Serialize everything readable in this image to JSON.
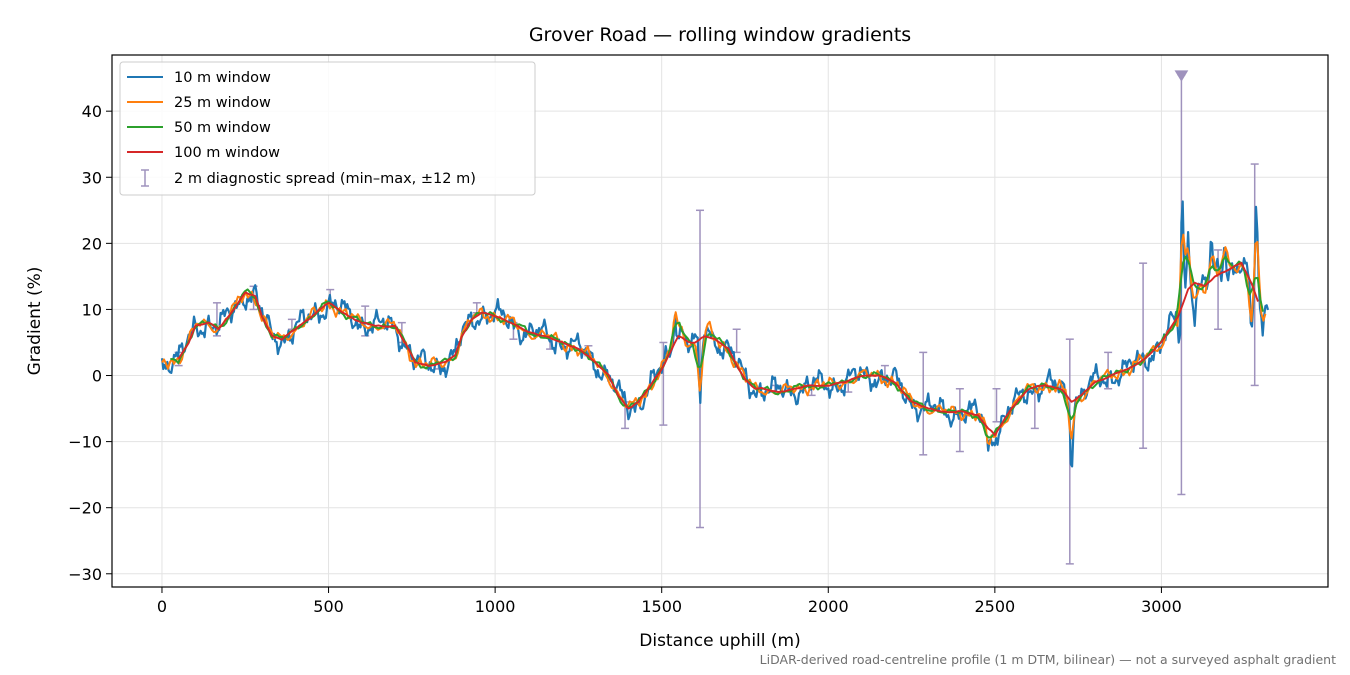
{
  "chart_data": {
    "type": "line",
    "title": "Grover Road — rolling window gradients",
    "xlabel": "Distance uphill (m)",
    "ylabel": "Gradient (%)",
    "xlim": [
      -150,
      3500
    ],
    "ylim": [
      -32,
      48.5
    ],
    "xticks": [
      0,
      500,
      1000,
      1500,
      2000,
      2500,
      3000
    ],
    "yticks": [
      -30,
      -20,
      -10,
      0,
      10,
      20,
      30,
      40
    ],
    "grid": true,
    "legend_position": "top-left",
    "footnote": "LiDAR-derived road-centreline profile (1 m DTM, bilinear) — not a surveyed asphalt gradient",
    "colors": {
      "w10": "#1f77b4",
      "w25": "#ff7f0e",
      "w50": "#2ca02c",
      "w100": "#d62728",
      "spread": "#9f92bd"
    },
    "base_profile": {
      "x": [
        0,
        50,
        80,
        100,
        140,
        170,
        200,
        250,
        280,
        300,
        330,
        360,
        400,
        450,
        500,
        530,
        560,
        600,
        640,
        700,
        740,
        760,
        800,
        850,
        880,
        900,
        930,
        960,
        1000,
        1050,
        1100,
        1150,
        1200,
        1250,
        1280,
        1310,
        1340,
        1370,
        1400,
        1430,
        1460,
        1500,
        1530,
        1550,
        1580,
        1600,
        1630,
        1660,
        1700,
        1720,
        1750,
        1780,
        1800,
        1850,
        1900,
        1950,
        2000,
        2050,
        2100,
        2150,
        2200,
        2250,
        2300,
        2350,
        2400,
        2450,
        2480,
        2500,
        2550,
        2600,
        2650,
        2700,
        2730,
        2760,
        2800,
        2850,
        2900,
        2950,
        3000,
        3050,
        3080,
        3100,
        3130,
        3160,
        3200,
        3240,
        3270,
        3300,
        3320
      ],
      "y": [
        2,
        2.5,
        5,
        7.5,
        8,
        7,
        9,
        12.5,
        12,
        9,
        6,
        5.5,
        7,
        9,
        11,
        10,
        9,
        8,
        7.5,
        7.5,
        4,
        2,
        1.5,
        2,
        3,
        6,
        8.5,
        9.5,
        9,
        8,
        6.5,
        6,
        5,
        4,
        3,
        1.5,
        0,
        -3,
        -5,
        -4,
        -2,
        1,
        4,
        6,
        5,
        5,
        6,
        5.5,
        4,
        2,
        -0.5,
        -2,
        -2,
        -2.5,
        -2,
        -1.5,
        -1.5,
        -1,
        0,
        0,
        -1,
        -4,
        -5,
        -5.5,
        -5.5,
        -6,
        -8,
        -9,
        -5,
        -2,
        -1.5,
        -2,
        -4,
        -3,
        -1,
        0,
        1,
        2.5,
        5,
        9,
        13,
        14,
        13.5,
        15,
        16,
        17,
        14,
        10,
        12
      ]
    },
    "series": [
      {
        "name": "10 m window",
        "key": "w10",
        "noise": 1.9
      },
      {
        "name": "25 m window",
        "key": "w25",
        "noise": 0.95
      },
      {
        "name": "50 m window",
        "key": "w50",
        "noise": 0.5
      },
      {
        "name": "100 m window",
        "key": "w100",
        "noise": 0.1
      }
    ],
    "spikes": [
      {
        "x": 1540,
        "y": 11
      },
      {
        "x": 1560,
        "y": 8
      },
      {
        "x": 1615,
        "y": -6
      },
      {
        "x": 1640,
        "y": 8
      },
      {
        "x": 2480,
        "y": -12
      },
      {
        "x": 2730,
        "y": -13
      },
      {
        "x": 3055,
        "y": 3
      },
      {
        "x": 3062,
        "y": 29
      },
      {
        "x": 3080,
        "y": 22
      },
      {
        "x": 3100,
        "y": 10
      },
      {
        "x": 3150,
        "y": 20
      },
      {
        "x": 3190,
        "y": 21
      },
      {
        "x": 3270,
        "y": 5
      },
      {
        "x": 3285,
        "y": 26
      },
      {
        "x": 3305,
        "y": 6
      }
    ],
    "error_bars": {
      "name": "2 m diagnostic spread (min–max, ±12 m)",
      "points": [
        {
          "x": 50,
          "lo": 1.5,
          "hi": 3.5
        },
        {
          "x": 165,
          "lo": 6,
          "hi": 11
        },
        {
          "x": 275,
          "lo": 10,
          "hi": 13.5
        },
        {
          "x": 390,
          "lo": 7,
          "hi": 8.5
        },
        {
          "x": 505,
          "lo": 10.5,
          "hi": 13
        },
        {
          "x": 610,
          "lo": 6,
          "hi": 10.5
        },
        {
          "x": 720,
          "lo": 5,
          "hi": 8
        },
        {
          "x": 830,
          "lo": 1,
          "hi": 2
        },
        {
          "x": 945,
          "lo": 9.5,
          "hi": 11
        },
        {
          "x": 1055,
          "lo": 5.5,
          "hi": 8
        },
        {
          "x": 1165,
          "lo": 4,
          "hi": 6
        },
        {
          "x": 1280,
          "lo": 3,
          "hi": 4.5
        },
        {
          "x": 1390,
          "lo": -8,
          "hi": -4
        },
        {
          "x": 1505,
          "lo": -7.5,
          "hi": 5
        },
        {
          "x": 1615,
          "lo": -23,
          "hi": 25
        },
        {
          "x": 1725,
          "lo": 3.5,
          "hi": 7
        },
        {
          "x": 1840,
          "lo": -2.5,
          "hi": -1.5
        },
        {
          "x": 1950,
          "lo": -3,
          "hi": -1.5
        },
        {
          "x": 2060,
          "lo": -2.5,
          "hi": -1
        },
        {
          "x": 2170,
          "lo": -1,
          "hi": 1.5
        },
        {
          "x": 2285,
          "lo": -12,
          "hi": 3.5
        },
        {
          "x": 2395,
          "lo": -11.5,
          "hi": -2
        },
        {
          "x": 2505,
          "lo": -7,
          "hi": -2
        },
        {
          "x": 2620,
          "lo": -8,
          "hi": -2
        },
        {
          "x": 2725,
          "lo": -28.5,
          "hi": 5.5
        },
        {
          "x": 2840,
          "lo": -2,
          "hi": 3.5
        },
        {
          "x": 2945,
          "lo": -11,
          "hi": 17
        },
        {
          "x": 3060,
          "lo": -18,
          "hi": 45.5
        },
        {
          "x": 3170,
          "lo": 7,
          "hi": 19
        },
        {
          "x": 3280,
          "lo": -1.5,
          "hi": 32
        }
      ],
      "overflow_marker": {
        "x": 3060,
        "y": 45.5
      }
    }
  }
}
